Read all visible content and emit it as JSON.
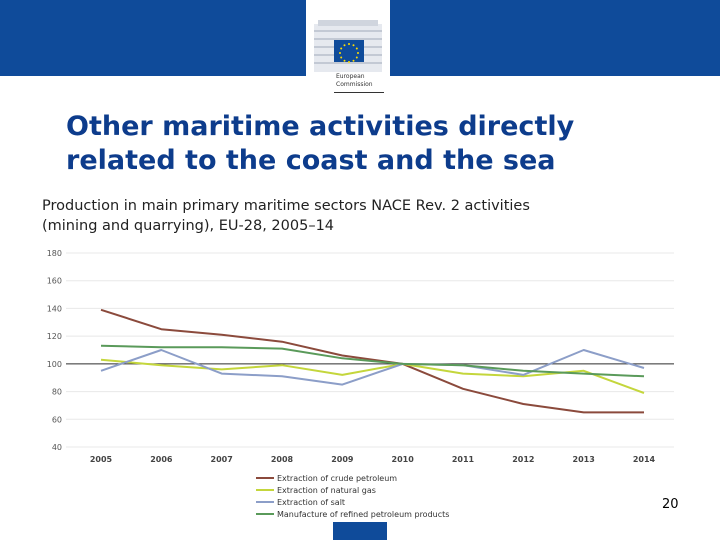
{
  "header": {
    "org_line1": "European",
    "org_line2": "Commission"
  },
  "slide": {
    "title_line1": "Other maritime activities directly",
    "title_line2": "related to the coast and the sea",
    "subtitle_line1": "Production in main primary maritime sectors NACE Rev. 2 activities",
    "subtitle_line2": "(mining and quarrying), EU-28, 2005–14",
    "page_number": "20"
  },
  "chart_data": {
    "type": "line",
    "title": "",
    "xlabel": "",
    "ylabel": "",
    "x": [
      "2005",
      "2006",
      "2007",
      "2008",
      "2009",
      "2010",
      "2011",
      "2012",
      "2013",
      "2014"
    ],
    "ylim": [
      40,
      180
    ],
    "yticks": [
      "40",
      "60",
      "80",
      "100",
      "120",
      "140",
      "160",
      "180"
    ],
    "reference_line": 100,
    "legend_position": "bottom",
    "series": [
      {
        "name": "Extraction of crude petroleum",
        "color": "#8b4a3c",
        "values": [
          139,
          125,
          121,
          116,
          106,
          100,
          82,
          71,
          65,
          65
        ]
      },
      {
        "name": "Extraction of natural gas",
        "color": "#c4d63c",
        "values": [
          103,
          99,
          96,
          99,
          92,
          100,
          93,
          91,
          95,
          79
        ]
      },
      {
        "name": "Extraction of salt",
        "color": "#8c9ec8",
        "values": [
          95,
          110,
          93,
          91,
          85,
          100,
          99,
          92,
          110,
          97
        ]
      },
      {
        "name": "Manufacture of refined petroleum products",
        "color": "#5a9a5a",
        "values": [
          113,
          112,
          112,
          111,
          104,
          100,
          99,
          95,
          93,
          91
        ]
      }
    ]
  }
}
